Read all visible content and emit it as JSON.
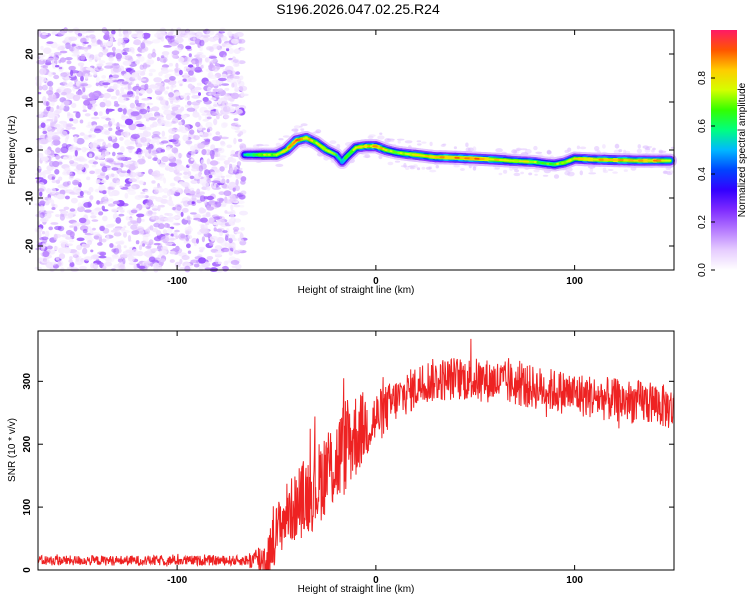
{
  "title": "S196.2026.047.02.25.R24",
  "colors": {
    "snr_line": "#ee2222",
    "axis": "#000000",
    "colormap": [
      "#ffffff",
      "#e6ccff",
      "#b57aff",
      "#7f2cff",
      "#3300ff",
      "#0044ff",
      "#00b8ff",
      "#00ff80",
      "#33ff00",
      "#d4ff00",
      "#ffcc00",
      "#ff5500",
      "#ff1a66"
    ]
  },
  "chart_data": [
    {
      "type": "heatmap",
      "name": "spectrogram",
      "xlabel": "Height of straight line (km)",
      "ylabel": "Frequency (Hz)",
      "xlim": [
        -170,
        150
      ],
      "ylim": [
        -25,
        25
      ],
      "xticks": [
        -100,
        0,
        100
      ],
      "yticks": [
        -20,
        -10,
        0,
        10,
        20
      ],
      "noise_region_x": [
        -170,
        -66
      ],
      "ridge": {
        "description": "high-amplitude frequency track",
        "x": [
          -66,
          -60,
          -55,
          -50,
          -45,
          -40,
          -35,
          -30,
          -25,
          -20,
          -17,
          -15,
          -10,
          -5,
          0,
          5,
          10,
          15,
          20,
          30,
          40,
          50,
          60,
          70,
          80,
          85,
          90,
          95,
          100,
          110,
          120,
          130,
          140,
          148
        ],
        "freq_hz": [
          -1,
          -1,
          -1,
          -1,
          0,
          2,
          2.5,
          1.5,
          0,
          -1,
          -2.5,
          -1.5,
          0.5,
          0.8,
          0.8,
          0,
          -0.5,
          -0.8,
          -1,
          -1.5,
          -1.6,
          -1.8,
          -2,
          -2.3,
          -2.5,
          -2.8,
          -3,
          -2.6,
          -1.8,
          -2,
          -2.1,
          -2.2,
          -2.2,
          -2.2
        ],
        "amplitude": [
          0.6,
          0.7,
          0.8,
          0.75,
          0.85,
          0.95,
          0.9,
          0.8,
          0.85,
          0.7,
          0.55,
          0.7,
          0.8,
          0.9,
          0.9,
          0.85,
          0.75,
          0.8,
          0.85,
          0.9,
          0.95,
          0.95,
          0.9,
          0.85,
          0.8,
          0.7,
          0.75,
          0.8,
          0.85,
          0.9,
          0.92,
          0.92,
          0.9,
          0.85
        ]
      }
    },
    {
      "type": "line",
      "name": "snr",
      "xlabel": "Height of straight line (km)",
      "ylabel": "SNR (10 * v/v)",
      "xlim": [
        -170,
        150
      ],
      "ylim": [
        0,
        380
      ],
      "xticks": [
        -100,
        0,
        100
      ],
      "yticks": [
        0,
        100,
        200,
        300
      ],
      "series": [
        {
          "name": "SNR",
          "x": [
            -170,
            -66,
            -55,
            -50,
            -45,
            -40,
            -35,
            -30,
            -25,
            -20,
            -15,
            -10,
            -5,
            0,
            5,
            10,
            20,
            25,
            40,
            60,
            80,
            100,
            120,
            140,
            150
          ],
          "values": [
            15,
            15,
            18,
            60,
            90,
            100,
            120,
            130,
            160,
            170,
            200,
            215,
            230,
            240,
            255,
            270,
            290,
            300,
            305,
            300,
            290,
            280,
            270,
            265,
            255
          ],
          "noise_amplitude": [
            8,
            8,
            35,
            45,
            50,
            55,
            65,
            65,
            70,
            75,
            80,
            70,
            55,
            45,
            40,
            35,
            35,
            35,
            35,
            35,
            35,
            35,
            35,
            35,
            35
          ]
        }
      ]
    }
  ],
  "colorbar": {
    "label": "Normalized spectral amplitude",
    "range": [
      0,
      1
    ],
    "ticks": [
      0.0,
      0.2,
      0.4,
      0.6,
      0.8
    ]
  }
}
